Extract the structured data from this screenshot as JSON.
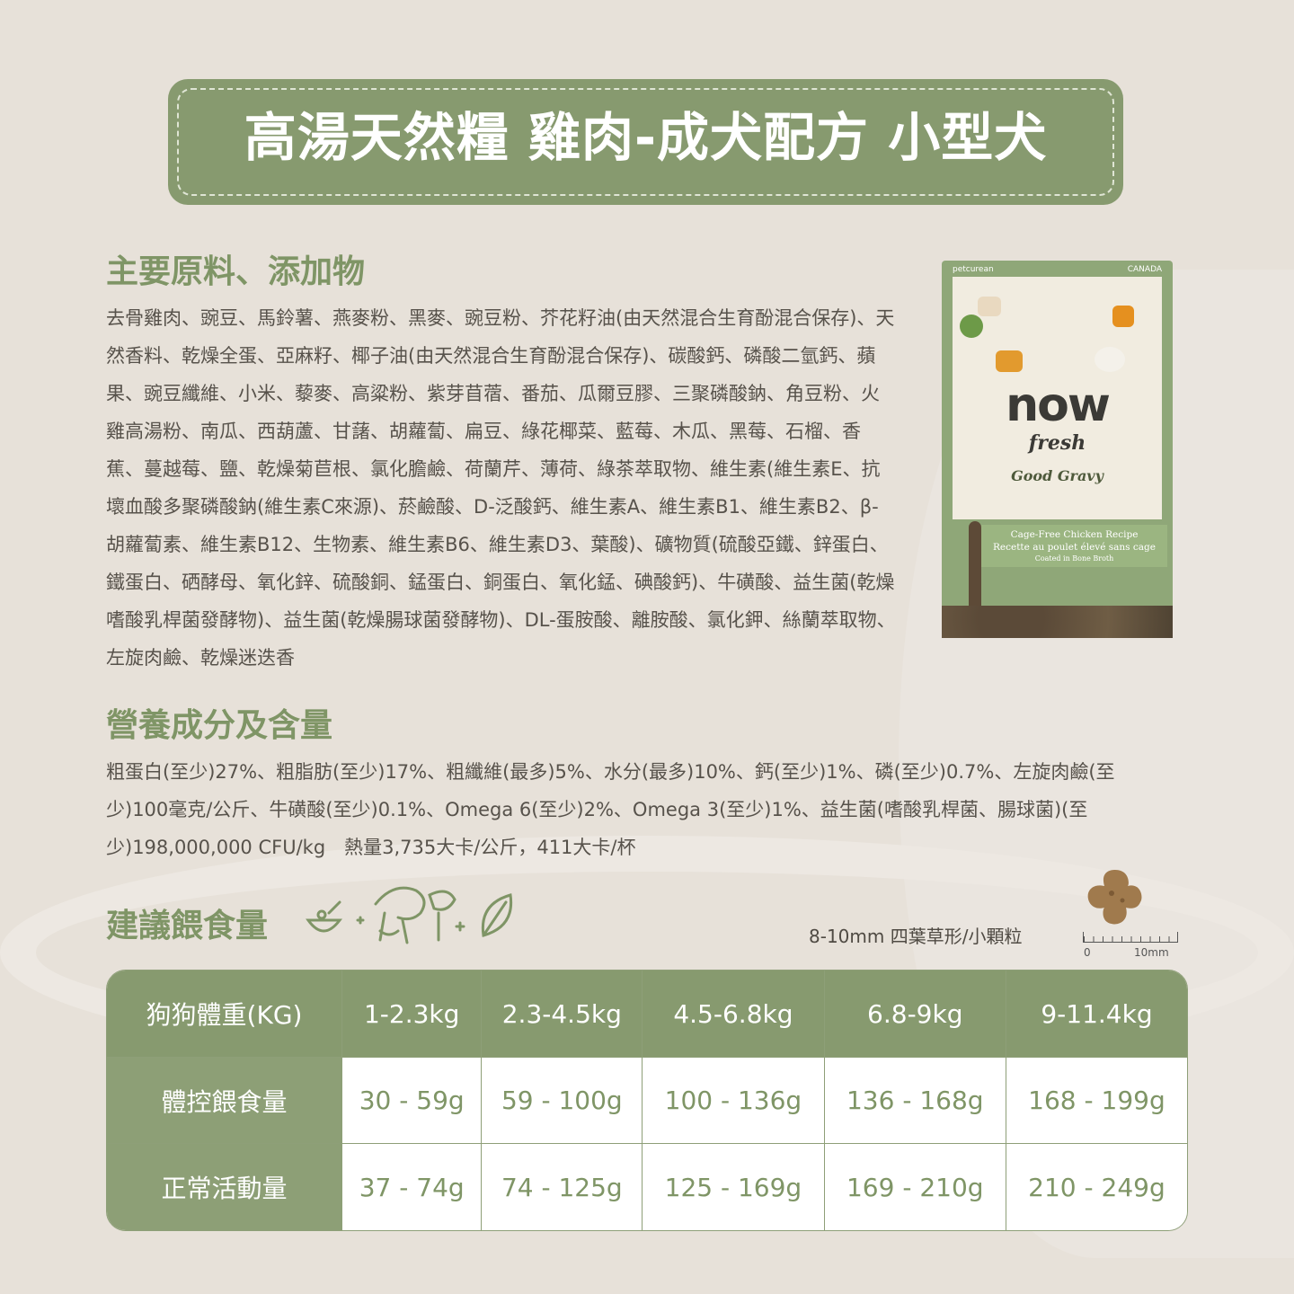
{
  "title": "高湯天然糧 雞肉-成犬配方 小型犬",
  "ingredients": {
    "heading": "主要原料、添加物",
    "text": "去骨雞肉、豌豆、馬鈴薯、燕麥粉、黑麥、豌豆粉、芥花籽油(由天然混合生育酚混合保存)、天然香料、乾燥全蛋、亞麻籽、椰子油(由天然混合生育酚混合保存)、碳酸鈣、磷酸二氫鈣、蘋果、豌豆纖維、小米、藜麥、高粱粉、紫芽苜蓿、番茄、瓜爾豆膠、三聚磷酸鈉、角豆粉、火雞高湯粉、南瓜、西葫蘆、甘藷、胡蘿蔔、扁豆、綠花椰菜、藍莓、木瓜、黑莓、石榴、香蕉、蔓越莓、鹽、乾燥菊苣根、氯化膽鹼、荷蘭芹、薄荷、綠茶萃取物、維生素(維生素E、抗壞血酸多聚磷酸鈉(維生素C來源)、菸鹼酸、D-泛酸鈣、維生素A、維生素B1、維生素B2、β-胡蘿蔔素、維生素B12、生物素、維生素B6、維生素D3、葉酸)、礦物質(硫酸亞鐵、鋅蛋白、鐵蛋白、硒酵母、氧化鋅、硫酸銅、錳蛋白、銅蛋白、氧化錳、碘酸鈣)、牛磺酸、益生菌(乾燥嗜酸乳桿菌發酵物)、益生菌(乾燥腸球菌發酵物)、DL-蛋胺酸、離胺酸、氯化鉀、絲蘭萃取物、左旋肉鹼、乾燥迷迭香"
  },
  "nutrition": {
    "heading": "營養成分及含量",
    "text": "粗蛋白(至少)27%、粗脂肪(至少)17%、粗纖維(最多)5%、水分(最多)10%、鈣(至少)1%、磷(至少)0.7%、左旋肉鹼(至少)100毫克/公斤、牛磺酸(至少)0.1%、Omega 6(至少)2%、Omega 3(至少)1%、益生菌(嗜酸乳桿菌、腸球菌)(至少)198,000,000 CFU/kg　熱量3,735大卡/公斤，411大卡/杯"
  },
  "product": {
    "brand": "petcurean",
    "country": "CANADA",
    "logo_now": "now",
    "logo_fresh": "fresh",
    "line": "Good Gravy",
    "recipe_en": "Cage-Free Chicken Recipe",
    "recipe_fr": "Recette au poulet élevé sans cage",
    "sub": "Coated in Bone Broth"
  },
  "feeding": {
    "heading": "建議餵食量",
    "kibble_label": "8-10mm 四葉草形/小顆粒",
    "scale_min": "0",
    "scale_max": "10mm",
    "headers": [
      "狗狗體重(KG)",
      "1-2.3kg",
      "2.3-4.5kg",
      "4.5-6.8kg",
      "6.8-9kg",
      "9-11.4kg"
    ],
    "rows": [
      {
        "label": "體控餵食量",
        "values": [
          "30 - 59g",
          "59 - 100g",
          "100 - 136g",
          "136 - 168g",
          "168 - 199g"
        ]
      },
      {
        "label": "正常活動量",
        "values": [
          "37 - 74g",
          "74 - 125g",
          "125 - 169g",
          "169 - 210g",
          "210 - 249g"
        ]
      }
    ]
  },
  "colors": {
    "green": "#879a6f",
    "heading": "#7f9566",
    "background": "#e7e1d9"
  }
}
